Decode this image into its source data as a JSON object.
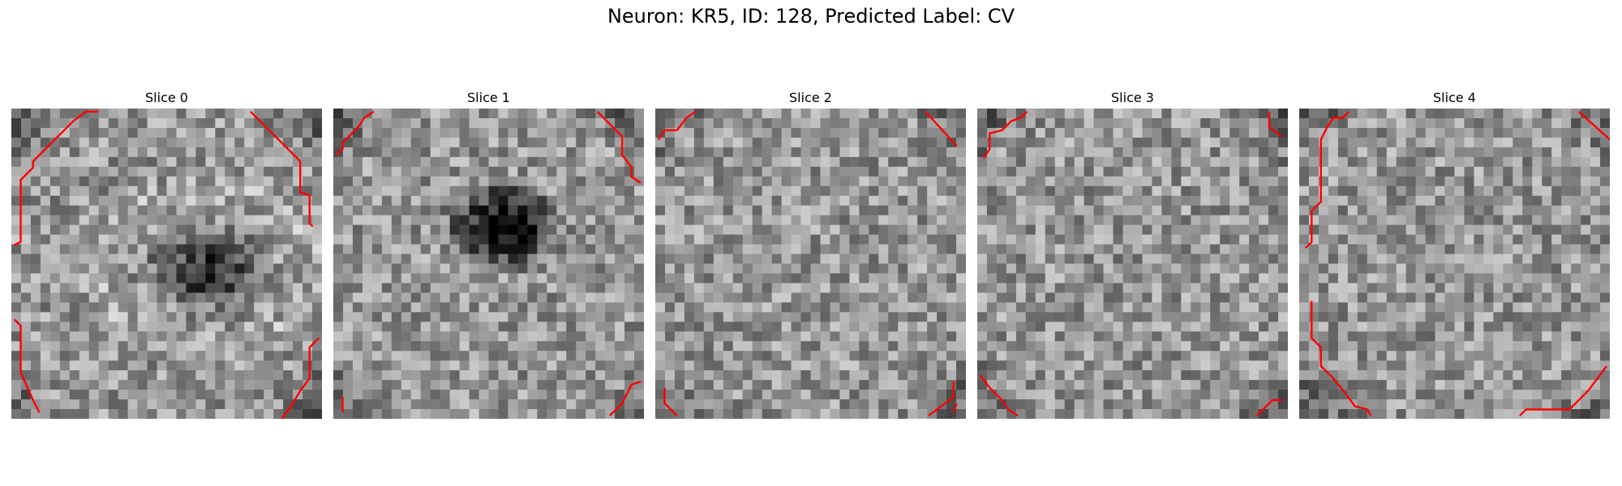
{
  "figure": {
    "title": "Neuron: KR5, ID: 128, Predicted Label: CV"
  },
  "panels": [
    {
      "title": "Slice 0",
      "pattern": "dark-center-blob",
      "contours": [
        [
          [
            0.01,
            0.44
          ],
          [
            0.03,
            0.43
          ],
          [
            0.03,
            0.23
          ],
          [
            0.07,
            0.19
          ],
          [
            0.07,
            0.17
          ],
          [
            0.13,
            0.11
          ],
          [
            0.17,
            0.07
          ],
          [
            0.2,
            0.04
          ],
          [
            0.24,
            0.01
          ],
          [
            0.28,
            0.01
          ]
        ],
        [
          [
            0.77,
            0.01
          ],
          [
            0.93,
            0.17
          ],
          [
            0.93,
            0.27
          ],
          [
            0.96,
            0.28
          ],
          [
            0.96,
            0.37
          ],
          [
            0.97,
            0.38
          ]
        ],
        [
          [
            0.01,
            0.68
          ],
          [
            0.03,
            0.7
          ],
          [
            0.03,
            0.85
          ],
          [
            0.07,
            0.94
          ],
          [
            0.09,
            0.98
          ]
        ],
        [
          [
            0.87,
            1.0
          ],
          [
            0.9,
            0.96
          ],
          [
            0.93,
            0.91
          ],
          [
            0.96,
            0.87
          ],
          [
            0.96,
            0.77
          ],
          [
            0.99,
            0.74
          ]
        ]
      ]
    },
    {
      "title": "Slice 1",
      "pattern": "dark-center-blob-strong",
      "contours": [
        [
          [
            0.01,
            0.15
          ],
          [
            0.03,
            0.13
          ],
          [
            0.03,
            0.11
          ],
          [
            0.05,
            0.09
          ],
          [
            0.08,
            0.06
          ],
          [
            0.1,
            0.03
          ],
          [
            0.13,
            0.01
          ]
        ],
        [
          [
            0.85,
            0.01
          ],
          [
            0.93,
            0.09
          ],
          [
            0.93,
            0.15
          ],
          [
            0.96,
            0.19
          ],
          [
            0.96,
            0.22
          ],
          [
            0.99,
            0.24
          ]
        ],
        [
          [
            0.03,
            0.93
          ],
          [
            0.03,
            0.98
          ]
        ],
        [
          [
            0.89,
            0.99
          ],
          [
            0.93,
            0.95
          ],
          [
            0.96,
            0.89
          ],
          [
            0.99,
            0.88
          ]
        ]
      ]
    },
    {
      "title": "Slice 2",
      "pattern": "mottled",
      "contours": [
        [
          [
            0.01,
            0.1
          ],
          [
            0.03,
            0.07
          ],
          [
            0.07,
            0.07
          ],
          [
            0.1,
            0.03
          ],
          [
            0.13,
            0.01
          ]
        ],
        [
          [
            0.87,
            0.01
          ],
          [
            0.97,
            0.12
          ]
        ],
        [
          [
            0.03,
            0.9
          ],
          [
            0.03,
            0.95
          ],
          [
            0.07,
            0.99
          ]
        ],
        [
          [
            0.97,
            0.95
          ],
          [
            0.96,
            0.98
          ]
        ],
        [
          [
            0.88,
            0.99
          ],
          [
            0.96,
            0.93
          ],
          [
            0.96,
            0.88
          ]
        ]
      ]
    },
    {
      "title": "Slice 3",
      "pattern": "mottled",
      "contours": [
        [
          [
            0.02,
            0.16
          ],
          [
            0.04,
            0.13
          ],
          [
            0.04,
            0.08
          ],
          [
            0.08,
            0.07
          ],
          [
            0.11,
            0.04
          ],
          [
            0.14,
            0.03
          ],
          [
            0.16,
            0.01
          ]
        ],
        [
          [
            0.94,
            0.01
          ],
          [
            0.94,
            0.06
          ],
          [
            0.98,
            0.09
          ]
        ],
        [
          [
            0.01,
            0.86
          ],
          [
            0.04,
            0.9
          ],
          [
            0.08,
            0.94
          ],
          [
            0.1,
            0.97
          ],
          [
            0.13,
            0.99
          ]
        ],
        [
          [
            0.9,
            0.99
          ],
          [
            0.95,
            0.94
          ],
          [
            0.98,
            0.94
          ]
        ]
      ]
    },
    {
      "title": "Slice 4",
      "pattern": "mottled",
      "contours": [
        [
          [
            0.02,
            0.45
          ],
          [
            0.04,
            0.43
          ],
          [
            0.04,
            0.33
          ],
          [
            0.07,
            0.3
          ],
          [
            0.07,
            0.1
          ],
          [
            0.09,
            0.06
          ],
          [
            0.11,
            0.03
          ],
          [
            0.14,
            0.03
          ],
          [
            0.16,
            0.01
          ]
        ],
        [
          [
            0.9,
            0.01
          ],
          [
            1.0,
            0.1
          ]
        ],
        [
          [
            0.04,
            0.62
          ],
          [
            0.04,
            0.74
          ],
          [
            0.07,
            0.77
          ],
          [
            0.07,
            0.83
          ],
          [
            0.11,
            0.87
          ],
          [
            0.15,
            0.92
          ],
          [
            0.18,
            0.96
          ],
          [
            0.22,
            0.97
          ],
          [
            0.23,
            0.99
          ]
        ],
        [
          [
            0.71,
            0.99
          ],
          [
            0.73,
            0.97
          ],
          [
            0.87,
            0.97
          ],
          [
            0.93,
            0.91
          ],
          [
            0.99,
            0.83
          ]
        ]
      ]
    }
  ]
}
